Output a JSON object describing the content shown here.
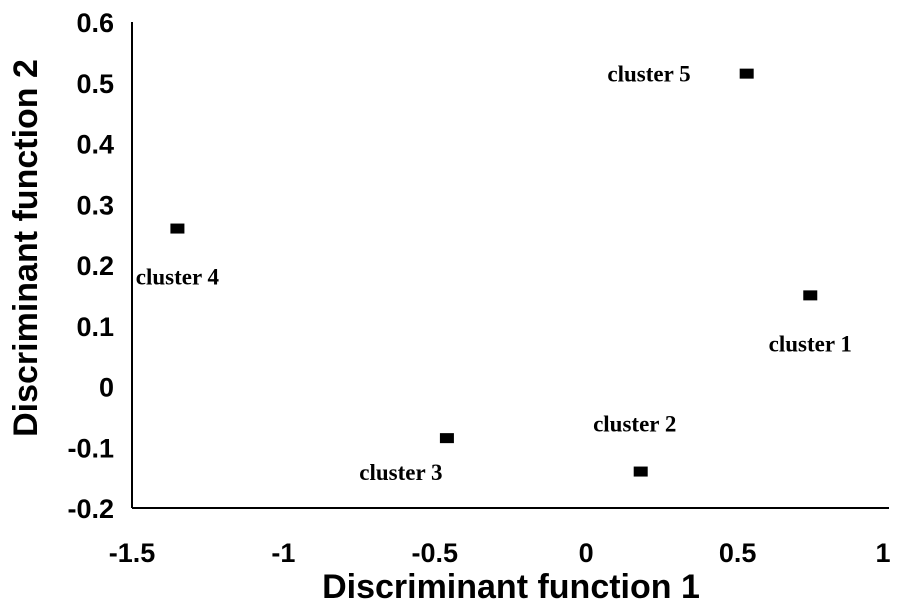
{
  "chart_data": {
    "type": "scatter",
    "title": "",
    "xlabel": "Discriminant function 1",
    "ylabel": "Discriminant function 2",
    "xlim": [
      -1.5,
      1
    ],
    "ylim": [
      -0.2,
      0.6
    ],
    "xticks": [
      "-1.5",
      "-1",
      "-0.5",
      "0",
      "0.5",
      "1"
    ],
    "xtick_values": [
      -1.5,
      -1,
      -0.5,
      0,
      0.5,
      1
    ],
    "yticks": [
      "0.6",
      "0.5",
      "0.4",
      "0.3",
      "0.2",
      "0.1",
      "0",
      "-0.1",
      "-0.2"
    ],
    "ytick_values": [
      0.6,
      0.5,
      0.4,
      0.3,
      0.2,
      0.1,
      0,
      -0.1,
      -0.2
    ],
    "grid": false,
    "marker": "square",
    "marker_color": "#000000",
    "points": [
      {
        "label": "cluster 1",
        "x": 0.74,
        "y": 0.15,
        "label_side": "below"
      },
      {
        "label": "cluster 2",
        "x": 0.18,
        "y": -0.14,
        "label_side": "above"
      },
      {
        "label": "cluster 3",
        "x": -0.46,
        "y": -0.085,
        "label_side": "below-left"
      },
      {
        "label": "cluster 4",
        "x": -1.35,
        "y": 0.26,
        "label_side": "below"
      },
      {
        "label": "cluster 5",
        "x": 0.53,
        "y": 0.515,
        "label_side": "left"
      }
    ]
  }
}
